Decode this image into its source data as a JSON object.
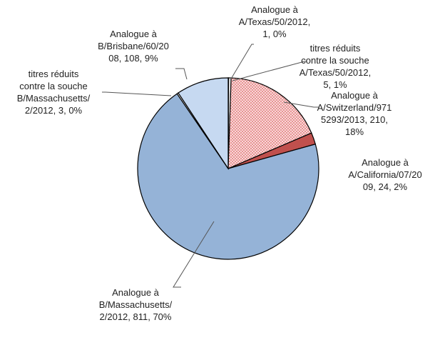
{
  "chart_data": {
    "type": "pie",
    "categories": [
      "Analogue à A/Texas/50/2012",
      "titres réduits contre la souche A/Texas/50/2012",
      "Analogue à A/Switzerland/9715293/2013",
      "Analogue à A/California/07/2009",
      "Analogue à B/Massachusetts/2/2012",
      "titres réduits contre la souche B/Massachusetts/2/2012",
      "Analogue à B/Brisbane/60/2008"
    ],
    "values": [
      1,
      5,
      210,
      24,
      811,
      3,
      108
    ],
    "value_labels": [
      "Analogue à A/Texas/50/2012, 1, 0%",
      "titres réduits contre la souche A/Texas/50/2012, 5, 1%",
      "Analogue à A/Switzerland/9715293/2013, 210, 18%",
      "Analogue à A/California/07/2009, 24, 2%",
      "Analogue à B/Massachusetts/2/2012, 811, 70%",
      "titres réduits contre la souche B/Massachusetts/2/2012, 3, 0%",
      "Analogue à B/Brisbane/60/2008, 108, 9%"
    ],
    "colors": [
      "#ffffff",
      "#ffffff",
      "#f4c7c7",
      "#c0504d",
      "#95b3d7",
      "#ffffff",
      "#c6d9f1"
    ],
    "hatched": [
      false,
      false,
      true,
      false,
      false,
      false,
      false
    ]
  }
}
